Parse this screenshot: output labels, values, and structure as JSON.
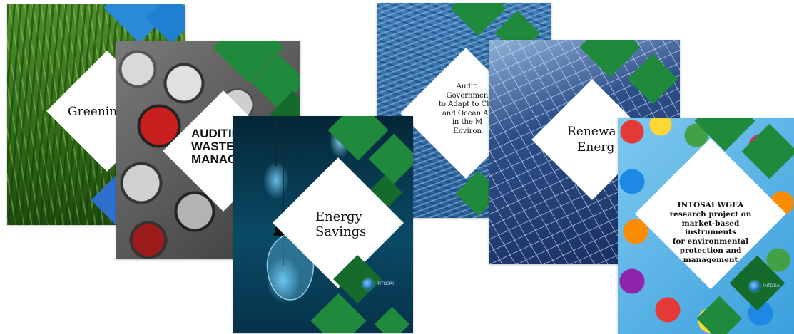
{
  "colors": {
    "green": "#1f8a3b",
    "dark_green": "#146b2c",
    "blue": "#1f7fd0",
    "white": "#ffffff"
  },
  "covers": [
    {
      "title": "Greenin",
      "theme": "grass"
    },
    {
      "title_lines": [
        "AUDITIN",
        "WASTE",
        "MANAG"
      ],
      "theme": "cans"
    },
    {
      "title_lines": [
        "Energy",
        "Savings"
      ],
      "theme": "light-bulbs",
      "logo_text": "INTOSAI"
    },
    {
      "title_lines": [
        "Auditi",
        "Governmen",
        "to Adapt to Clin",
        "and Ocean Ac",
        "in the M",
        "Environ"
      ],
      "theme": "fish"
    },
    {
      "title_lines": [
        "Renewa",
        "Energ"
      ],
      "theme": "solar-panels"
    },
    {
      "title_lines": [
        "INTOSAI WGEA",
        "research project on",
        "market-based instruments",
        "for environmental",
        "protection and",
        "management"
      ],
      "theme": "umbrellas",
      "logo_text": "INTOSAI"
    }
  ]
}
